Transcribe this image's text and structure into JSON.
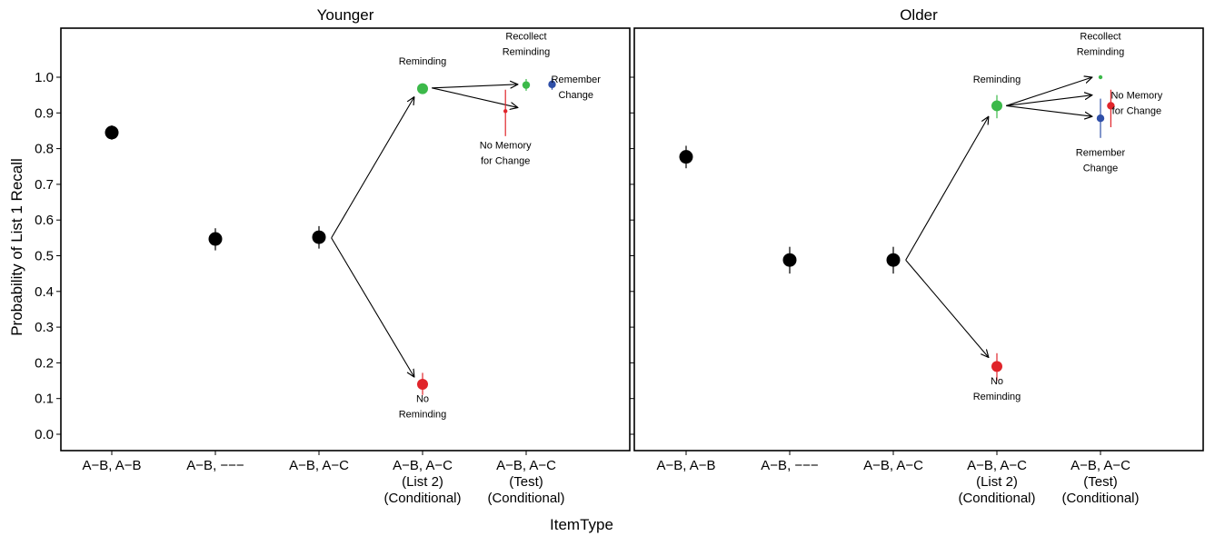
{
  "chart_data": {
    "type": "scatter",
    "xlabel": "ItemType",
    "ylabel": "Probability of List 1 Recall",
    "ylim": [
      -0.02,
      1.15
    ],
    "yticks": [
      0.0,
      0.1,
      0.2,
      0.3,
      0.4,
      0.5,
      0.6,
      0.7,
      0.8,
      0.9,
      1.0
    ],
    "categories": [
      [
        "A−B, A−B"
      ],
      [
        "A−B, −−−"
      ],
      [
        "A−B, A−C"
      ],
      [
        "A−B, A−C",
        "(List 2)",
        "(Conditional)"
      ],
      [
        "A−B, A−C",
        "(Test)",
        "(Conditional)"
      ]
    ],
    "colors": {
      "black": "#000000",
      "green": "#3cb94a",
      "red": "#e0242a",
      "blue": "#2f4fa8"
    },
    "panels": [
      {
        "title": "Younger",
        "points": [
          {
            "x": 1,
            "y": 0.845,
            "lo": 0.825,
            "hi": 0.865,
            "color": "black",
            "size": "large"
          },
          {
            "x": 2,
            "y": 0.547,
            "lo": 0.515,
            "hi": 0.577,
            "color": "black",
            "size": "large"
          },
          {
            "x": 3,
            "y": 0.552,
            "lo": 0.52,
            "hi": 0.583,
            "color": "black",
            "size": "large"
          },
          {
            "x": 4,
            "y": 0.968,
            "lo": 0.955,
            "hi": 0.98,
            "color": "green",
            "size": "medium"
          },
          {
            "x": 4,
            "y": 0.14,
            "lo": 0.11,
            "hi": 0.172,
            "color": "red",
            "size": "medium"
          },
          {
            "x": 4.8,
            "y": 0.905,
            "lo": 0.835,
            "hi": 0.965,
            "color": "red",
            "size": "tiny"
          },
          {
            "x": 5.0,
            "y": 0.978,
            "lo": 0.962,
            "hi": 0.995,
            "color": "green",
            "size": "small"
          },
          {
            "x": 5.25,
            "y": 0.98,
            "lo": 0.965,
            "hi": 0.998,
            "color": "blue",
            "size": "small"
          }
        ],
        "annotations": [
          {
            "lines": [
              "Reminding"
            ],
            "x": 4,
            "y": 1.035
          },
          {
            "lines": [
              "No",
              "Reminding"
            ],
            "x": 4,
            "y": 0.09
          },
          {
            "lines": [
              "Recollect",
              "Reminding"
            ],
            "x": 5.0,
            "y": 1.105
          },
          {
            "lines": [
              "No Memory",
              "for Change"
            ],
            "x": 4.8,
            "y": 0.8
          },
          {
            "lines": [
              "Remember",
              "Change"
            ],
            "x": 5.48,
            "y": 0.985
          }
        ],
        "arrows": [
          {
            "from": [
              3.12,
              0.55
            ],
            "to": [
              3.92,
              0.945
            ]
          },
          {
            "from": [
              3.12,
              0.55
            ],
            "to": [
              3.92,
              0.16
            ]
          },
          {
            "from": [
              4.09,
              0.97
            ],
            "to": [
              4.92,
              0.98
            ]
          },
          {
            "from": [
              4.09,
              0.97
            ],
            "to": [
              4.92,
              0.915
            ]
          }
        ]
      },
      {
        "title": "Older",
        "points": [
          {
            "x": 1,
            "y": 0.777,
            "lo": 0.745,
            "hi": 0.808,
            "color": "black",
            "size": "large"
          },
          {
            "x": 2,
            "y": 0.488,
            "lo": 0.45,
            "hi": 0.525,
            "color": "black",
            "size": "large"
          },
          {
            "x": 3,
            "y": 0.488,
            "lo": 0.45,
            "hi": 0.525,
            "color": "black",
            "size": "large"
          },
          {
            "x": 4,
            "y": 0.92,
            "lo": 0.885,
            "hi": 0.95,
            "color": "green",
            "size": "medium"
          },
          {
            "x": 4,
            "y": 0.19,
            "lo": 0.15,
            "hi": 0.227,
            "color": "red",
            "size": "medium"
          },
          {
            "x": 5.0,
            "y": 1.0,
            "lo": 1.0,
            "hi": 1.0,
            "color": "green",
            "size": "tiny"
          },
          {
            "x": 5.0,
            "y": 0.885,
            "lo": 0.83,
            "hi": 0.94,
            "color": "blue",
            "size": "small"
          },
          {
            "x": 5.1,
            "y": 0.92,
            "lo": 0.86,
            "hi": 0.965,
            "color": "red",
            "size": "small"
          }
        ],
        "annotations": [
          {
            "lines": [
              "Reminding"
            ],
            "x": 4,
            "y": 0.985
          },
          {
            "lines": [
              "No",
              "Reminding"
            ],
            "x": 4,
            "y": 0.14
          },
          {
            "lines": [
              "Recollect",
              "Reminding"
            ],
            "x": 5.0,
            "y": 1.105
          },
          {
            "lines": [
              "No Memory",
              "for Change"
            ],
            "x": 5.35,
            "y": 0.94
          },
          {
            "lines": [
              "Remember",
              "Change"
            ],
            "x": 5.0,
            "y": 0.78
          }
        ],
        "arrows": [
          {
            "from": [
              3.12,
              0.488
            ],
            "to": [
              3.92,
              0.89
            ]
          },
          {
            "from": [
              3.12,
              0.488
            ],
            "to": [
              3.92,
              0.215
            ]
          },
          {
            "from": [
              4.09,
              0.92
            ],
            "to": [
              4.92,
              1.0
            ]
          },
          {
            "from": [
              4.09,
              0.92
            ],
            "to": [
              4.92,
              0.95
            ]
          },
          {
            "from": [
              4.09,
              0.92
            ],
            "to": [
              4.92,
              0.89
            ]
          }
        ]
      }
    ]
  }
}
